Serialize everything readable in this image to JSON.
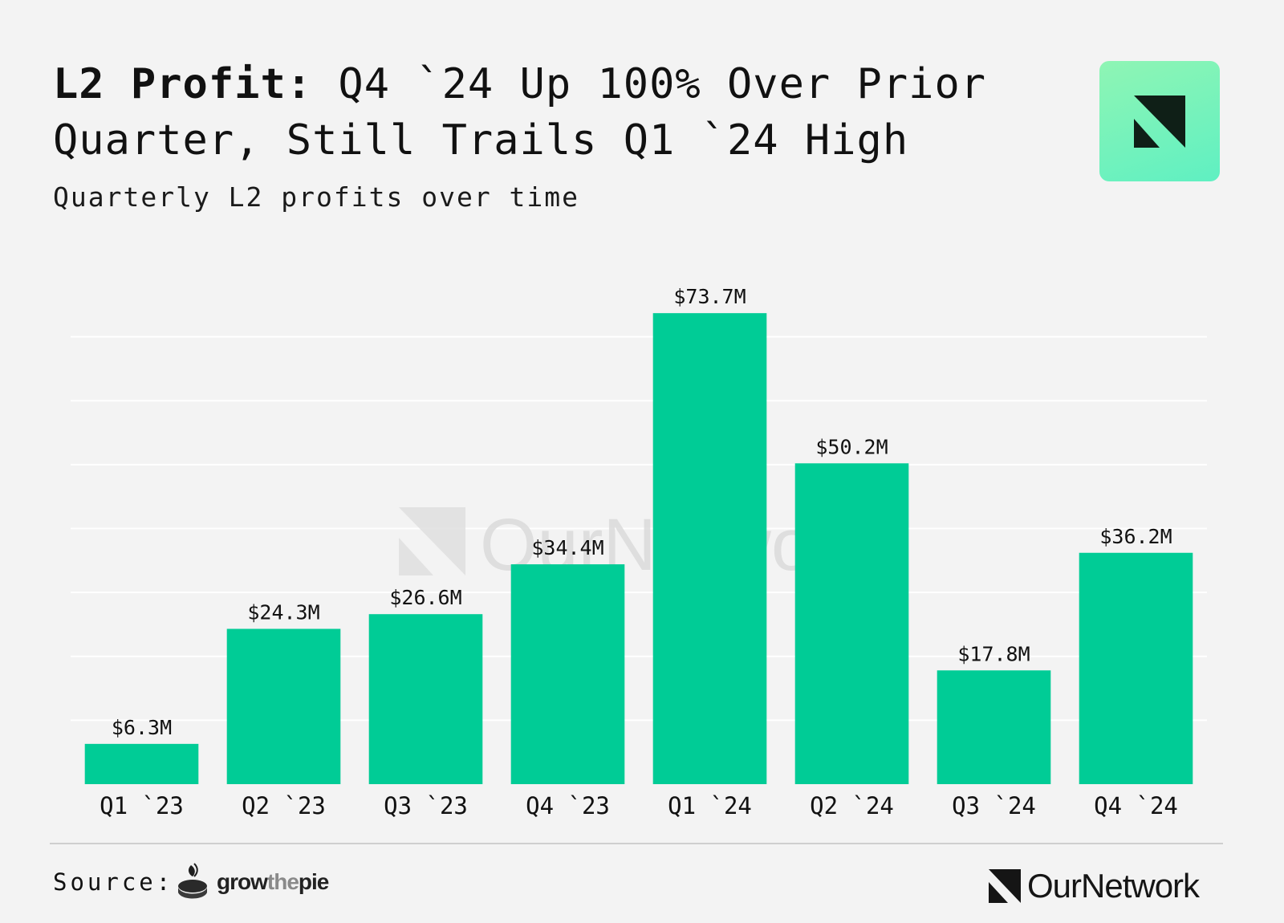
{
  "header": {
    "title_bold": "L2 Profit:",
    "title_rest": " Q4 `24 Up 100% Over Prior Quarter, Still Trails Q1 `24 High",
    "subtitle": "Quarterly L2 profits over time"
  },
  "watermark": {
    "text": "OurNetwork"
  },
  "footer": {
    "source_label": "Source:",
    "source_name_1": "grow",
    "source_name_2": "the",
    "source_name_3": "pie",
    "brand_name": "OurNetwork"
  },
  "colors": {
    "bar": "#00cc96",
    "background": "#f3f3f3",
    "text": "#111111",
    "grid": "#ffffff"
  },
  "chart_data": {
    "type": "bar",
    "title": "L2 Profit: Q4 `24 Up 100% Over Prior Quarter, Still Trails Q1 `24 High",
    "subtitle": "Quarterly L2 profits over time",
    "xlabel": "",
    "ylabel": "",
    "ylim": [
      0,
      80
    ],
    "grid": true,
    "unit": "$M",
    "categories": [
      "Q1 `23",
      "Q2 `23",
      "Q3 `23",
      "Q4 `23",
      "Q1 `24",
      "Q2 `24",
      "Q3 `24",
      "Q4 `24"
    ],
    "values": [
      6.3,
      24.3,
      26.6,
      34.4,
      73.7,
      50.2,
      17.8,
      36.2
    ],
    "data_labels": [
      "$6.3M",
      "$24.3M",
      "$26.6M",
      "$34.4M",
      "$73.7M",
      "$50.2M",
      "$17.8M",
      "$36.2M"
    ]
  }
}
